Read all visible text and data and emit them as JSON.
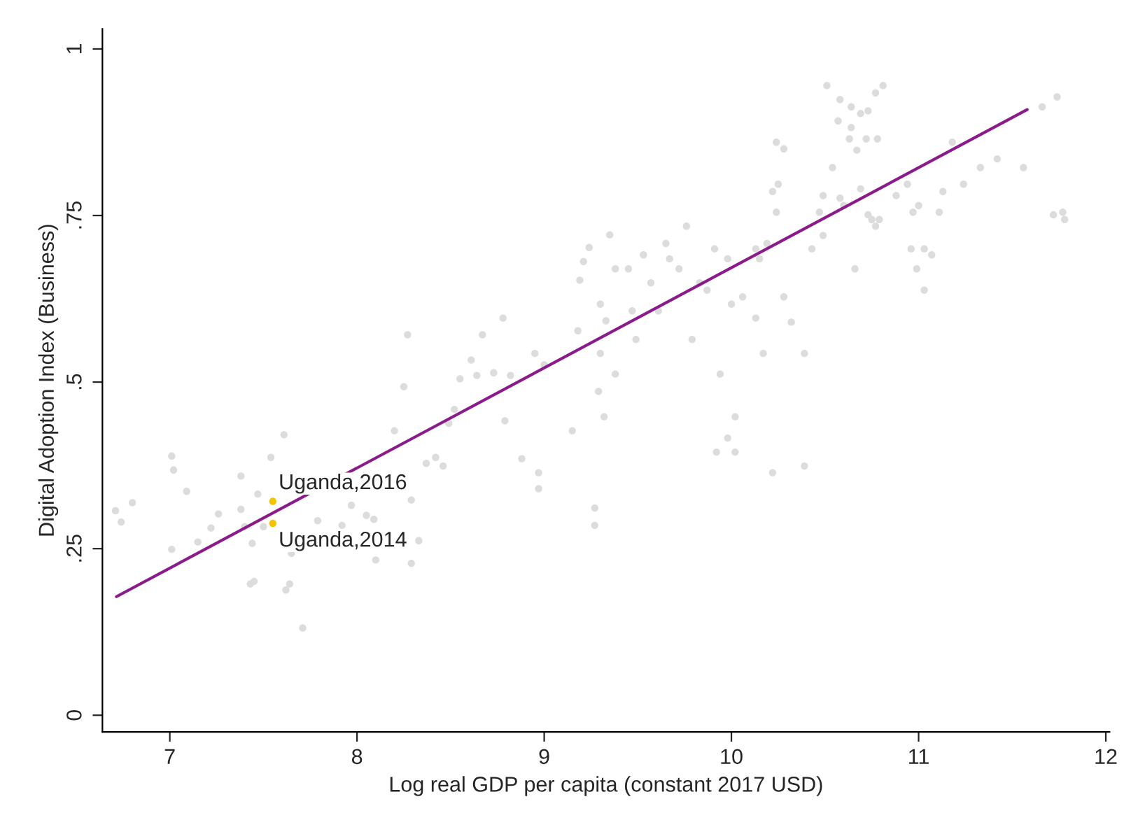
{
  "chart_data": {
    "type": "scatter",
    "xlabel": "Log real GDP per capita (constant 2017 USD)",
    "ylabel": "Digital Adoption Index (Business)",
    "xlim": [
      6.64,
      12.02
    ],
    "ylim": [
      -0.025,
      1.03
    ],
    "xticks": [
      7,
      8,
      9,
      10,
      11,
      12
    ],
    "yticks": [
      0,
      {
        "value": 0.25,
        "label": ".25"
      },
      {
        "value": 0.5,
        "label": ".5"
      },
      {
        "value": 0.75,
        "label": ".75"
      },
      1
    ],
    "grid": false,
    "legend": false,
    "marker": "circle",
    "series": [
      {
        "color": "#dcdcdc",
        "x": [
          6.71,
          6.74,
          6.8,
          7.01,
          7.02,
          7.01,
          7.09,
          7.15,
          7.22,
          7.26,
          7.38,
          7.38,
          7.4,
          7.43,
          7.44,
          7.45,
          7.47,
          7.5,
          7.54,
          7.61,
          7.62,
          7.64,
          7.65,
          7.71,
          7.79,
          7.92,
          7.97,
          8.05,
          8.09,
          8.1,
          8.2,
          8.25,
          8.27,
          8.29,
          8.29,
          8.33,
          8.37,
          8.42,
          8.46,
          8.49,
          8.52,
          8.55,
          8.61,
          8.64,
          8.67,
          8.73,
          8.78,
          8.79,
          8.82,
          8.88,
          8.97,
          8.95,
          8.97,
          9.0,
          9.15,
          9.18,
          9.19,
          9.21,
          9.24,
          9.29,
          9.3,
          9.3,
          9.35,
          9.38,
          9.27,
          9.32,
          9.27,
          9.33,
          9.38,
          9.45,
          9.47,
          9.49,
          9.53,
          9.57,
          9.61,
          9.65,
          9.67,
          9.72,
          9.76,
          9.79,
          9.83,
          9.87,
          9.91,
          9.98,
          10.0,
          10.02,
          10.06,
          9.94,
          9.98,
          10.15,
          10.17,
          10.19,
          10.13,
          10.22,
          10.24,
          10.28,
          10.24,
          10.25,
          10.28,
          10.32,
          10.39,
          10.39,
          10.43,
          10.49,
          10.54,
          10.57,
          10.6,
          10.64,
          10.69,
          10.73,
          10.77,
          10.88,
          10.94,
          10.97,
          11.0,
          11.03,
          11.07,
          11.11,
          11.13,
          11.18,
          11.24,
          11.33,
          11.42,
          11.56,
          11.66,
          11.74,
          11.72,
          11.77,
          11.78,
          10.51,
          10.58,
          10.64,
          10.63,
          10.67,
          10.72,
          10.73,
          10.77,
          10.81,
          10.78,
          10.58,
          10.69,
          10.79,
          10.75,
          10.66,
          10.96,
          10.99,
          11.03,
          10.47,
          10.49,
          10.22,
          10.13,
          9.92,
          10.02
        ],
        "values": [
          0.307,
          0.29,
          0.319,
          0.389,
          0.368,
          0.249,
          0.336,
          0.26,
          0.281,
          0.302,
          0.359,
          0.309,
          0.283,
          0.197,
          0.258,
          0.201,
          0.332,
          0.283,
          0.387,
          0.421,
          0.188,
          0.197,
          0.243,
          0.131,
          0.292,
          0.285,
          0.315,
          0.3,
          0.294,
          0.233,
          0.427,
          0.493,
          0.571,
          0.323,
          0.228,
          0.262,
          0.378,
          0.387,
          0.374,
          0.438,
          0.459,
          0.505,
          0.533,
          0.51,
          0.571,
          0.514,
          0.596,
          0.442,
          0.51,
          0.385,
          0.34,
          0.543,
          0.364,
          0.526,
          0.427,
          0.577,
          0.653,
          0.681,
          0.702,
          0.486,
          0.617,
          0.543,
          0.721,
          0.512,
          0.311,
          0.448,
          0.285,
          0.592,
          0.67,
          0.67,
          0.607,
          0.564,
          0.691,
          0.649,
          0.607,
          0.708,
          0.685,
          0.67,
          0.734,
          0.564,
          0.649,
          0.638,
          0.7,
          0.685,
          0.617,
          0.448,
          0.628,
          0.512,
          0.416,
          0.685,
          0.543,
          0.708,
          0.7,
          0.786,
          0.86,
          0.85,
          0.755,
          0.797,
          0.628,
          0.59,
          0.543,
          0.374,
          0.7,
          0.78,
          0.822,
          0.892,
          0.765,
          0.882,
          0.903,
          0.751,
          0.734,
          0.78,
          0.797,
          0.755,
          0.765,
          0.7,
          0.691,
          0.755,
          0.786,
          0.86,
          0.797,
          0.822,
          0.835,
          0.822,
          0.913,
          0.928,
          0.751,
          0.755,
          0.744,
          0.945,
          0.924,
          0.913,
          0.865,
          0.848,
          0.865,
          0.907,
          0.934,
          0.945,
          0.865,
          0.776,
          0.79,
          0.744,
          0.744,
          0.67,
          0.7,
          0.67,
          0.638,
          0.755,
          0.72,
          0.364,
          0.596,
          0.395,
          0.395
        ]
      },
      {
        "color": "#f5c400",
        "x": [
          7.55,
          7.55
        ],
        "values": [
          0.321,
          0.288
        ]
      },
      {
        "type": "line",
        "color": "#8b1a8b",
        "marker": "none",
        "x": [
          6.715,
          11.58
        ],
        "values": [
          0.178,
          0.909
        ]
      }
    ],
    "annotations": [
      {
        "text": "Uganda,2016",
        "x": 7.55,
        "y": 0.321
      },
      {
        "text": "Uganda,2014",
        "x": 7.55,
        "y": 0.288
      }
    ]
  }
}
